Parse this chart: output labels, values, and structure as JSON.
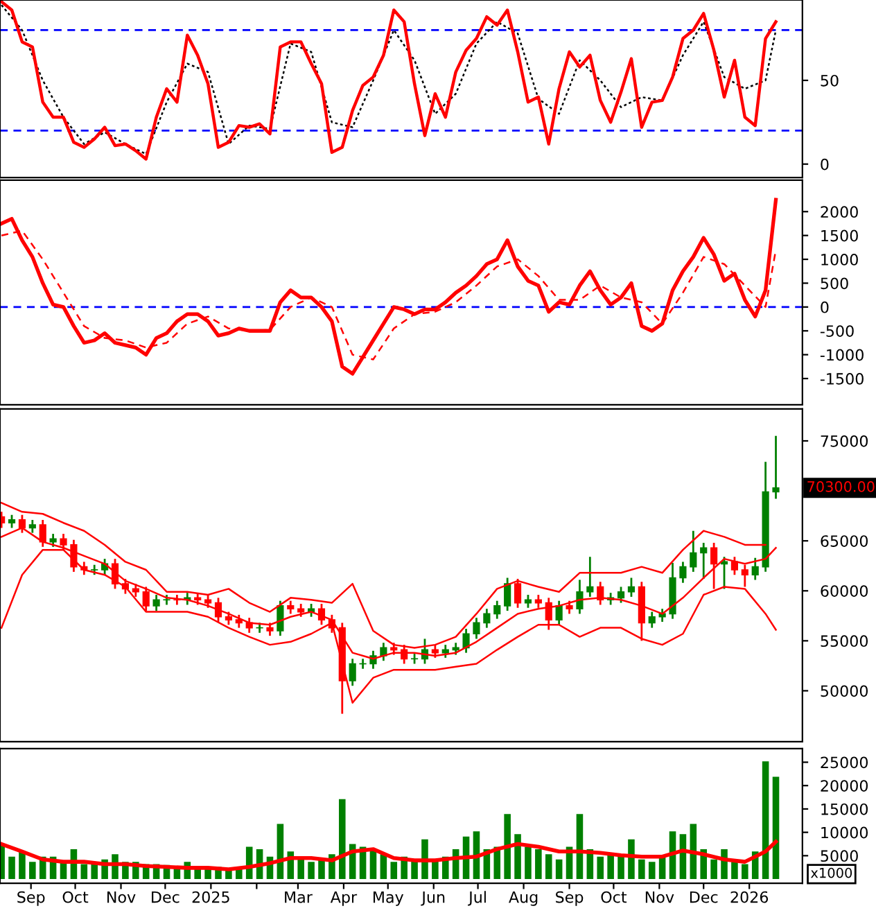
{
  "chart_data": [
    {
      "type": "line",
      "xlim": [
        "2024-08-11",
        "2026-02-06"
      ],
      "ylim": [
        -8,
        98
      ],
      "yticks": [
        0,
        50
      ],
      "tick_labels": "y",
      "ref_lines": [
        {
          "axis": "y",
          "value": 80,
          "color": "#0000ff",
          "line_style": "dashed"
        },
        {
          "axis": "y",
          "value": 20,
          "color": "#0000ff",
          "line_style": "dashed"
        }
      ],
      "x": [
        "2024-08-12",
        "2024-08-19",
        "2024-08-26",
        "2024-09-02",
        "2024-09-09",
        "2024-09-16",
        "2024-09-23",
        "2024-09-30",
        "2024-10-07",
        "2024-10-14",
        "2024-10-21",
        "2024-10-28",
        "2024-11-04",
        "2024-11-11",
        "2024-11-18",
        "2024-11-25",
        "2024-12-02",
        "2024-12-09",
        "2024-12-16",
        "2024-12-23",
        "2024-12-30",
        "2025-01-06",
        "2025-01-13",
        "2025-01-20",
        "2025-01-27",
        "2025-02-03",
        "2025-02-10",
        "2025-02-17",
        "2025-02-24",
        "2025-03-03",
        "2025-03-10",
        "2025-03-17",
        "2025-03-24",
        "2025-03-31",
        "2025-04-07",
        "2025-04-14",
        "2025-04-21",
        "2025-04-28",
        "2025-05-05",
        "2025-05-12",
        "2025-05-19",
        "2025-05-26",
        "2025-06-02",
        "2025-06-09",
        "2025-06-16",
        "2025-06-23",
        "2025-06-30",
        "2025-07-07",
        "2025-07-14",
        "2025-07-21",
        "2025-07-28",
        "2025-08-04",
        "2025-08-11",
        "2025-08-18",
        "2025-08-25",
        "2025-09-01",
        "2025-09-08",
        "2025-09-15",
        "2025-09-22",
        "2025-09-29",
        "2025-10-06",
        "2025-10-13",
        "2025-10-20",
        "2025-10-27",
        "2025-11-03",
        "2025-11-10",
        "2025-11-17",
        "2025-11-24",
        "2025-12-01",
        "2025-12-08",
        "2025-12-15",
        "2025-12-22",
        "2025-12-29",
        "2026-01-05",
        "2026-01-12",
        "2026-01-19"
      ],
      "series": [
        {
          "type": "line",
          "color": "#000000",
          "line_style": "dotted",
          "x": [
            "2024-08-12",
            "2024-08-26",
            "2024-09-09",
            "2024-09-23",
            "2024-10-07",
            "2024-10-21",
            "2024-11-04",
            "2024-11-18",
            "2024-12-02",
            "2024-12-16",
            "2024-12-30",
            "2025-01-13",
            "2025-01-27",
            "2025-02-10",
            "2025-02-24",
            "2025-03-10",
            "2025-03-24",
            "2025-04-07",
            "2025-04-21",
            "2025-05-05",
            "2025-05-19",
            "2025-06-02",
            "2025-06-16",
            "2025-06-30",
            "2025-07-14",
            "2025-07-28",
            "2025-08-11",
            "2025-08-25",
            "2025-09-08",
            "2025-09-22",
            "2025-10-06",
            "2025-10-20",
            "2025-11-03",
            "2025-11-17",
            "2025-12-01",
            "2025-12-15",
            "2025-12-29",
            "2026-01-12",
            "2026-01-19"
          ],
          "values": [
            95,
            80,
            50,
            28,
            12,
            19,
            12,
            6,
            37,
            60,
            55,
            12,
            23,
            21,
            72,
            67,
            25,
            22,
            50,
            80,
            62,
            30,
            42,
            72,
            85,
            78,
            39,
            30,
            62,
            50,
            34,
            40,
            38,
            65,
            85,
            52,
            45,
            50,
            80
          ]
        },
        {
          "type": "line",
          "color": "#ff0000",
          "line_style": "solid",
          "values": [
            97,
            92,
            73,
            70,
            37,
            28,
            28,
            13,
            10,
            15,
            22,
            11,
            12,
            8,
            3,
            28,
            45,
            37,
            77,
            65,
            48,
            10,
            13,
            23,
            22,
            24,
            18,
            70,
            73,
            73,
            60,
            48,
            7,
            10,
            32,
            47,
            52,
            65,
            92,
            85,
            48,
            17,
            42,
            28,
            55,
            68,
            75,
            88,
            83,
            92,
            67,
            37,
            40,
            12,
            45,
            67,
            58,
            65,
            38,
            25,
            43,
            63,
            22,
            37,
            38,
            52,
            75,
            80,
            90,
            68,
            40,
            62,
            28,
            23,
            75,
            85
          ]
        }
      ]
    },
    {
      "type": "line",
      "xlim": [
        "2024-08-11",
        "2026-02-06"
      ],
      "ylim": [
        -2050,
        2660
      ],
      "yticks": [
        -1500,
        -1000,
        -500,
        0,
        500,
        1000,
        1500,
        2000
      ],
      "tick_labels": "y",
      "ref_lines": [
        {
          "axis": "y",
          "value": 0,
          "color": "#0000ff",
          "line_style": "dashed"
        }
      ],
      "x": [
        "2024-08-12",
        "2024-08-19",
        "2024-08-26",
        "2024-09-02",
        "2024-09-09",
        "2024-09-16",
        "2024-09-23",
        "2024-09-30",
        "2024-10-07",
        "2024-10-14",
        "2024-10-21",
        "2024-10-28",
        "2024-11-04",
        "2024-11-11",
        "2024-11-18",
        "2024-11-25",
        "2024-12-02",
        "2024-12-09",
        "2024-12-16",
        "2024-12-23",
        "2024-12-30",
        "2025-01-06",
        "2025-01-13",
        "2025-01-20",
        "2025-01-27",
        "2025-02-03",
        "2025-02-10",
        "2025-02-17",
        "2025-02-24",
        "2025-03-03",
        "2025-03-10",
        "2025-03-17",
        "2025-03-24",
        "2025-03-31",
        "2025-04-07",
        "2025-04-14",
        "2025-04-21",
        "2025-04-28",
        "2025-05-05",
        "2025-05-12",
        "2025-05-19",
        "2025-05-26",
        "2025-06-02",
        "2025-06-09",
        "2025-06-16",
        "2025-06-23",
        "2025-06-30",
        "2025-07-07",
        "2025-07-14",
        "2025-07-21",
        "2025-07-28",
        "2025-08-04",
        "2025-08-11",
        "2025-08-18",
        "2025-08-25",
        "2025-09-01",
        "2025-09-08",
        "2025-09-15",
        "2025-09-22",
        "2025-09-29",
        "2025-10-06",
        "2025-10-13",
        "2025-10-20",
        "2025-10-27",
        "2025-11-03",
        "2025-11-10",
        "2025-11-17",
        "2025-11-24",
        "2025-12-01",
        "2025-12-08",
        "2025-12-15",
        "2025-12-22",
        "2025-12-29",
        "2026-01-05",
        "2026-01-12",
        "2026-01-19"
      ],
      "series": [
        {
          "type": "line",
          "color": "#ff0000",
          "line_style": "dashed",
          "x": [
            "2024-08-12",
            "2024-08-26",
            "2024-09-09",
            "2024-09-23",
            "2024-10-07",
            "2024-10-21",
            "2024-11-04",
            "2024-11-18",
            "2024-12-02",
            "2024-12-16",
            "2024-12-30",
            "2025-01-13",
            "2025-01-27",
            "2025-02-10",
            "2025-02-24",
            "2025-03-10",
            "2025-03-24",
            "2025-04-07",
            "2025-04-21",
            "2025-05-05",
            "2025-05-19",
            "2025-06-02",
            "2025-06-16",
            "2025-06-30",
            "2025-07-14",
            "2025-07-28",
            "2025-08-11",
            "2025-08-25",
            "2025-09-08",
            "2025-09-22",
            "2025-10-06",
            "2025-10-20",
            "2025-11-03",
            "2025-11-17",
            "2025-12-01",
            "2025-12-15",
            "2025-12-29",
            "2026-01-12",
            "2026-01-19"
          ],
          "values": [
            1500,
            1600,
            1000,
            300,
            -400,
            -650,
            -700,
            -850,
            -750,
            -350,
            -200,
            -450,
            -500,
            -480,
            0,
            200,
            0,
            -1000,
            -1100,
            -450,
            -150,
            -100,
            100,
            450,
            850,
            1000,
            650,
            150,
            150,
            450,
            200,
            100,
            -350,
            300,
            1050,
            900,
            450,
            0,
            1200
          ]
        },
        {
          "type": "line",
          "color": "#ff0000",
          "line_style": "solid",
          "values": [
            1750,
            1850,
            1400,
            1050,
            500,
            50,
            0,
            -400,
            -750,
            -700,
            -550,
            -750,
            -800,
            -850,
            -1000,
            -650,
            -550,
            -300,
            -150,
            -150,
            -300,
            -600,
            -550,
            -450,
            -500,
            -500,
            -500,
            100,
            350,
            200,
            200,
            0,
            -300,
            -1250,
            -1400,
            -1050,
            -700,
            -350,
            0,
            -50,
            -150,
            -50,
            -50,
            100,
            300,
            450,
            650,
            900,
            1000,
            1400,
            850,
            550,
            450,
            -100,
            100,
            50,
            450,
            750,
            350,
            50,
            200,
            500,
            -400,
            -500,
            -350,
            350,
            750,
            1050,
            1450,
            1100,
            550,
            700,
            150,
            -200,
            350,
            2250
          ]
        }
      ]
    },
    {
      "type": "candlestick",
      "xlim": [
        "2024-08-11",
        "2026-02-06"
      ],
      "ylim": [
        44900,
        78200
      ],
      "yticks": [
        50000,
        55000,
        60000,
        65000,
        75000
      ],
      "tick_labels": "y",
      "annotations": [
        {
          "text": "70300.00",
          "x": "2026-01-19",
          "y": 70300
        }
      ],
      "x": [
        "2024-08-12",
        "2024-08-19",
        "2024-08-26",
        "2024-09-02",
        "2024-09-09",
        "2024-09-16",
        "2024-09-23",
        "2024-09-30",
        "2024-10-07",
        "2024-10-14",
        "2024-10-21",
        "2024-10-28",
        "2024-11-04",
        "2024-11-11",
        "2024-11-18",
        "2024-11-25",
        "2024-12-02",
        "2024-12-09",
        "2024-12-16",
        "2024-12-23",
        "2024-12-30",
        "2025-01-06",
        "2025-01-13",
        "2025-01-20",
        "2025-01-27",
        "2025-02-03",
        "2025-02-10",
        "2025-02-17",
        "2025-02-24",
        "2025-03-03",
        "2025-03-10",
        "2025-03-17",
        "2025-03-24",
        "2025-03-31",
        "2025-04-07",
        "2025-04-14",
        "2025-04-21",
        "2025-04-28",
        "2025-05-05",
        "2025-05-12",
        "2025-05-19",
        "2025-05-26",
        "2025-06-02",
        "2025-06-09",
        "2025-06-16",
        "2025-06-23",
        "2025-06-30",
        "2025-07-07",
        "2025-07-14",
        "2025-07-21",
        "2025-07-28",
        "2025-08-04",
        "2025-08-11",
        "2025-08-18",
        "2025-08-25",
        "2025-09-01",
        "2025-09-08",
        "2025-09-15",
        "2025-09-22",
        "2025-09-29",
        "2025-10-06",
        "2025-10-13",
        "2025-10-20",
        "2025-10-27",
        "2025-11-03",
        "2025-11-10",
        "2025-11-17",
        "2025-11-24",
        "2025-12-01",
        "2025-12-08",
        "2025-12-15",
        "2025-12-22",
        "2025-12-29",
        "2026-01-05",
        "2026-01-12",
        "2026-01-19"
      ],
      "ohlc": [
        [
          67400,
          67900,
          66300,
          66800
        ],
        [
          66800,
          67600,
          66300,
          67100
        ],
        [
          67100,
          67600,
          65800,
          66300
        ],
        [
          66300,
          67100,
          65800,
          66600
        ],
        [
          66600,
          67100,
          64400,
          64900
        ],
        [
          64900,
          65700,
          64400,
          65200
        ],
        [
          65200,
          65700,
          64100,
          64600
        ],
        [
          64600,
          65100,
          61900,
          62400
        ],
        [
          62400,
          62900,
          61600,
          62100
        ],
        [
          62100,
          62600,
          61600,
          62100
        ],
        [
          62100,
          63200,
          61600,
          62700
        ],
        [
          62700,
          63200,
          60200,
          60700
        ],
        [
          60700,
          61200,
          59700,
          60200
        ],
        [
          60200,
          60700,
          59400,
          59900
        ],
        [
          59900,
          60400,
          58000,
          58500
        ],
        [
          58500,
          59600,
          58000,
          59100
        ],
        [
          59100,
          59600,
          58600,
          59100
        ],
        [
          59100,
          59600,
          58600,
          59100
        ],
        [
          59100,
          59800,
          58600,
          59300
        ],
        [
          59300,
          59800,
          58600,
          59100
        ],
        [
          59100,
          59600,
          58300,
          58800
        ],
        [
          58800,
          59300,
          56900,
          57400
        ],
        [
          57400,
          57900,
          56600,
          57100
        ],
        [
          57100,
          57600,
          56300,
          56800
        ],
        [
          56800,
          57300,
          55800,
          56300
        ],
        [
          56300,
          56800,
          55800,
          56300
        ],
        [
          56300,
          56800,
          55500,
          56000
        ],
        [
          56000,
          59000,
          55500,
          58500
        ],
        [
          58500,
          59000,
          57700,
          58200
        ],
        [
          58200,
          58700,
          57400,
          57900
        ],
        [
          57900,
          58700,
          57400,
          58200
        ],
        [
          58200,
          58700,
          56600,
          57100
        ],
        [
          57100,
          57600,
          55800,
          56300
        ],
        [
          56300,
          56800,
          47700,
          51000
        ],
        [
          51000,
          53200,
          50500,
          52700
        ],
        [
          52700,
          53200,
          52200,
          52700
        ],
        [
          52700,
          54000,
          52200,
          53500
        ],
        [
          53500,
          54800,
          53000,
          54300
        ],
        [
          54300,
          54800,
          53600,
          54100
        ],
        [
          54100,
          54600,
          52700,
          53200
        ],
        [
          53200,
          53700,
          52700,
          53200
        ],
        [
          53200,
          55200,
          52700,
          54100
        ],
        [
          54100,
          54600,
          53300,
          53800
        ],
        [
          53800,
          54600,
          53300,
          54100
        ],
        [
          54100,
          54800,
          53600,
          54300
        ],
        [
          54300,
          56200,
          53800,
          55700
        ],
        [
          55700,
          57300,
          55200,
          56800
        ],
        [
          56800,
          58200,
          56300,
          57700
        ],
        [
          57700,
          59000,
          57200,
          58500
        ],
        [
          58500,
          61300,
          58000,
          60700
        ],
        [
          60700,
          61200,
          58300,
          58800
        ],
        [
          58800,
          59600,
          58300,
          59100
        ],
        [
          59100,
          59600,
          58300,
          58800
        ],
        [
          58800,
          59300,
          56100,
          57100
        ],
        [
          57100,
          59000,
          56600,
          58500
        ],
        [
          58500,
          59000,
          57700,
          58200
        ],
        [
          58200,
          61100,
          57700,
          59900
        ],
        [
          59900,
          63400,
          59400,
          60400
        ],
        [
          60400,
          60900,
          58600,
          59100
        ],
        [
          59100,
          59800,
          58600,
          59300
        ],
        [
          59300,
          60400,
          58800,
          59900
        ],
        [
          59900,
          61300,
          59400,
          60400
        ],
        [
          60400,
          60900,
          55000,
          56800
        ],
        [
          56800,
          57900,
          56300,
          57400
        ],
        [
          57400,
          58200,
          56900,
          57700
        ],
        [
          57700,
          62800,
          57200,
          61300
        ],
        [
          61300,
          62900,
          60800,
          62400
        ],
        [
          62400,
          66000,
          61900,
          63800
        ],
        [
          63800,
          64800,
          61200,
          64300
        ],
        [
          64300,
          64800,
          60200,
          62700
        ],
        [
          62700,
          63400,
          60200,
          62900
        ],
        [
          62900,
          63400,
          61600,
          62100
        ],
        [
          62100,
          62600,
          60400,
          61600
        ],
        [
          61600,
          63300,
          61100,
          62400
        ],
        [
          62400,
          72900,
          61900,
          69900
        ],
        [
          69900,
          75500,
          69200,
          70300
        ]
      ],
      "colors": [
        "#ff0000",
        "#008000",
        "#ff0000",
        "#008000",
        "#ff0000",
        "#008000",
        "#ff0000",
        "#ff0000",
        "#ff0000",
        "#008000",
        "#008000",
        "#ff0000",
        "#ff0000",
        "#ff0000",
        "#ff0000",
        "#008000",
        "#008000",
        "#ff0000",
        "#008000",
        "#ff0000",
        "#ff0000",
        "#ff0000",
        "#ff0000",
        "#ff0000",
        "#ff0000",
        "#008000",
        "#ff0000",
        "#008000",
        "#ff0000",
        "#ff0000",
        "#008000",
        "#ff0000",
        "#ff0000",
        "#ff0000",
        "#008000",
        "#008000",
        "#008000",
        "#008000",
        "#ff0000",
        "#ff0000",
        "#008000",
        "#008000",
        "#ff0000",
        "#008000",
        "#008000",
        "#008000",
        "#008000",
        "#008000",
        "#008000",
        "#008000",
        "#ff0000",
        "#008000",
        "#ff0000",
        "#ff0000",
        "#008000",
        "#ff0000",
        "#008000",
        "#008000",
        "#ff0000",
        "#008000",
        "#008000",
        "#008000",
        "#ff0000",
        "#008000",
        "#008000",
        "#008000",
        "#008000",
        "#008000",
        "#008000",
        "#ff0000",
        "#008000",
        "#ff0000",
        "#ff0000",
        "#008000",
        "#008000",
        "#008000"
      ],
      "series": [
        {
          "type": "line",
          "color": "#ff0000",
          "line_style": "solid",
          "x": [
            "2024-08-12",
            "2024-08-26",
            "2024-09-09",
            "2024-09-23",
            "2024-10-07",
            "2024-10-21",
            "2024-11-04",
            "2024-11-18",
            "2024-12-02",
            "2024-12-16",
            "2024-12-30",
            "2025-01-13",
            "2025-01-27",
            "2025-02-10",
            "2025-02-24",
            "2025-03-10",
            "2025-03-24",
            "2025-04-07",
            "2025-04-21",
            "2025-05-05",
            "2025-05-19",
            "2025-06-02",
            "2025-06-16",
            "2025-06-30",
            "2025-07-14",
            "2025-07-28",
            "2025-08-11",
            "2025-08-25",
            "2025-09-08",
            "2025-09-22",
            "2025-10-06",
            "2025-10-20",
            "2025-11-03",
            "2025-11-17",
            "2025-12-01",
            "2025-12-15",
            "2025-12-29",
            "2026-01-12"
          ],
          "values": [
            68800,
            67900,
            67700,
            66800,
            66000,
            64600,
            62900,
            62100,
            59900,
            59900,
            59600,
            60200,
            58800,
            57900,
            59300,
            59100,
            58800,
            60700,
            56000,
            54600,
            54300,
            54600,
            55400,
            57700,
            60200,
            61000,
            60400,
            59900,
            61800,
            61800,
            61800,
            62400,
            61800,
            64100,
            66000,
            65400,
            64600,
            64600
          ]
        },
        {
          "type": "line",
          "color": "#ff0000",
          "line_style": "solid",
          "x": [
            "2024-08-12",
            "2024-08-26",
            "2024-09-09",
            "2024-09-23",
            "2024-10-07",
            "2024-10-21",
            "2024-11-04",
            "2024-11-18",
            "2024-12-02",
            "2024-12-16",
            "2024-12-30",
            "2025-01-13",
            "2025-01-27",
            "2025-02-10",
            "2025-02-24",
            "2025-03-10",
            "2025-03-24",
            "2025-04-07",
            "2025-04-21",
            "2025-05-05",
            "2025-05-19",
            "2025-06-02",
            "2025-06-16",
            "2025-06-30",
            "2025-07-14",
            "2025-07-28",
            "2025-08-11",
            "2025-08-25",
            "2025-09-08",
            "2025-09-22",
            "2025-10-06",
            "2025-10-20",
            "2025-11-03",
            "2025-11-17",
            "2025-12-01",
            "2025-12-15",
            "2025-12-29",
            "2026-01-12",
            "2026-01-19"
          ],
          "values": [
            65400,
            66300,
            64900,
            64300,
            63500,
            62700,
            61000,
            60200,
            59300,
            59100,
            58500,
            57700,
            56800,
            56600,
            57400,
            57900,
            57100,
            53800,
            53200,
            53800,
            53800,
            53500,
            53800,
            54900,
            56300,
            57700,
            58200,
            58500,
            59100,
            59300,
            59100,
            58500,
            57700,
            59300,
            61300,
            63200,
            62700,
            63200,
            64300
          ]
        },
        {
          "type": "line",
          "color": "#ff0000",
          "line_style": "solid",
          "x": [
            "2024-08-12",
            "2024-08-26",
            "2024-09-09",
            "2024-09-23",
            "2024-10-07",
            "2024-10-21",
            "2024-11-04",
            "2024-11-18",
            "2024-12-02",
            "2024-12-16",
            "2024-12-30",
            "2025-01-13",
            "2025-01-27",
            "2025-02-10",
            "2025-02-24",
            "2025-03-10",
            "2025-03-24",
            "2025-04-07",
            "2025-04-21",
            "2025-05-05",
            "2025-05-19",
            "2025-06-02",
            "2025-06-16",
            "2025-06-30",
            "2025-07-14",
            "2025-07-28",
            "2025-08-11",
            "2025-08-25",
            "2025-09-08",
            "2025-09-22",
            "2025-10-06",
            "2025-10-20",
            "2025-11-03",
            "2025-11-17",
            "2025-12-01",
            "2025-12-15",
            "2025-12-29",
            "2026-01-12",
            "2026-01-19"
          ],
          "values": [
            56300,
            61600,
            64100,
            64100,
            62100,
            61600,
            60400,
            57900,
            57900,
            57900,
            57400,
            56300,
            55400,
            54600,
            54900,
            55700,
            56800,
            48800,
            51300,
            52100,
            52100,
            52100,
            52400,
            52700,
            54100,
            55400,
            56600,
            56600,
            55400,
            56300,
            56300,
            55200,
            54600,
            55700,
            59600,
            60400,
            60200,
            57700,
            56100
          ]
        }
      ]
    },
    {
      "type": "bar",
      "xlim": [
        "2024-08-11",
        "2026-02-06"
      ],
      "ylim": [
        -900,
        27900
      ],
      "yticks": [
        5000,
        10000,
        15000,
        20000,
        25000
      ],
      "xticks": [
        {
          "value": "2024-09-01",
          "label": "Sep"
        },
        {
          "value": "2024-10-01",
          "label": "Oct"
        },
        {
          "value": "2024-11-01",
          "label": "Nov"
        },
        {
          "value": "2024-12-01",
          "label": "Dec"
        },
        {
          "value": "2025-01-01",
          "label": "2025"
        },
        {
          "value": "2025-02-01",
          "label": null
        },
        {
          "value": "2025-03-01",
          "label": "Mar"
        },
        {
          "value": "2025-04-01",
          "label": "Apr"
        },
        {
          "value": "2025-05-01",
          "label": "May"
        },
        {
          "value": "2025-06-01",
          "label": "Jun"
        },
        {
          "value": "2025-07-01",
          "label": "Jul"
        },
        {
          "value": "2025-08-01",
          "label": "Aug"
        },
        {
          "value": "2025-09-01",
          "label": "Sep"
        },
        {
          "value": "2025-10-01",
          "label": "Oct"
        },
        {
          "value": "2025-11-01",
          "label": "Nov"
        },
        {
          "value": "2025-12-01",
          "label": "Dec"
        },
        {
          "value": "2026-01-01",
          "label": "2026"
        }
      ],
      "annotations": [
        "x1000"
      ],
      "color": "#008000",
      "x": [
        "2024-08-12",
        "2024-08-19",
        "2024-08-26",
        "2024-09-02",
        "2024-09-09",
        "2024-09-16",
        "2024-09-23",
        "2024-09-30",
        "2024-10-07",
        "2024-10-14",
        "2024-10-21",
        "2024-10-28",
        "2024-11-04",
        "2024-11-11",
        "2024-11-18",
        "2024-11-25",
        "2024-12-02",
        "2024-12-09",
        "2024-12-16",
        "2024-12-23",
        "2024-12-30",
        "2025-01-06",
        "2025-01-13",
        "2025-01-20",
        "2025-01-27",
        "2025-02-03",
        "2025-02-10",
        "2025-02-17",
        "2025-02-24",
        "2025-03-03",
        "2025-03-10",
        "2025-03-17",
        "2025-03-24",
        "2025-03-31",
        "2025-04-07",
        "2025-04-14",
        "2025-04-21",
        "2025-04-28",
        "2025-05-05",
        "2025-05-12",
        "2025-05-19",
        "2025-05-26",
        "2025-06-02",
        "2025-06-09",
        "2025-06-16",
        "2025-06-23",
        "2025-06-30",
        "2025-07-07",
        "2025-07-14",
        "2025-07-21",
        "2025-07-28",
        "2025-08-04",
        "2025-08-11",
        "2025-08-18",
        "2025-08-25",
        "2025-09-01",
        "2025-09-08",
        "2025-09-15",
        "2025-09-22",
        "2025-09-29",
        "2025-10-06",
        "2025-10-13",
        "2025-10-20",
        "2025-10-27",
        "2025-11-03",
        "2025-11-10",
        "2025-11-17",
        "2025-11-24",
        "2025-12-01",
        "2025-12-08",
        "2025-12-15",
        "2025-12-22",
        "2025-12-29",
        "2026-01-05",
        "2026-01-12",
        "2026-01-19"
      ],
      "values": [
        7500,
        4800,
        5900,
        3700,
        4800,
        4800,
        3700,
        6400,
        3200,
        3700,
        4200,
        5300,
        3700,
        3700,
        3200,
        3200,
        3000,
        2600,
        3700,
        2600,
        2600,
        2600,
        2100,
        2100,
        6900,
        6400,
        4800,
        11800,
        5900,
        4200,
        3700,
        4200,
        5300,
        17100,
        7500,
        6900,
        6400,
        5300,
        3700,
        4800,
        4200,
        8500,
        4200,
        4800,
        6400,
        9100,
        10200,
        6400,
        6900,
        13900,
        9600,
        6900,
        6400,
        5300,
        4200,
        6900,
        13900,
        6400,
        4800,
        5300,
        4800,
        8500,
        4200,
        3700,
        4800,
        10200,
        9600,
        11800,
        6400,
        4200,
        6400,
        3700,
        3200,
        5900,
        25200,
        21900
      ],
      "series": [
        {
          "type": "line",
          "color": "#ff0000",
          "line_style": "solid",
          "x": [
            "2024-08-12",
            "2024-08-26",
            "2024-09-09",
            "2024-09-23",
            "2024-10-07",
            "2024-10-21",
            "2024-11-04",
            "2024-11-18",
            "2024-12-02",
            "2024-12-16",
            "2024-12-30",
            "2025-01-13",
            "2025-01-27",
            "2025-02-10",
            "2025-02-24",
            "2025-03-10",
            "2025-03-24",
            "2025-04-07",
            "2025-04-21",
            "2025-05-05",
            "2025-05-19",
            "2025-06-02",
            "2025-06-16",
            "2025-06-30",
            "2025-07-14",
            "2025-07-28",
            "2025-08-11",
            "2025-08-25",
            "2025-09-08",
            "2025-09-22",
            "2025-10-06",
            "2025-10-20",
            "2025-11-03",
            "2025-11-17",
            "2025-12-01",
            "2025-12-15",
            "2025-12-29",
            "2026-01-12",
            "2026-01-19"
          ],
          "values": [
            7500,
            5900,
            4200,
            3700,
            3700,
            3200,
            3200,
            2800,
            2600,
            2400,
            2400,
            2100,
            2600,
            3400,
            4500,
            4500,
            4000,
            5900,
            6400,
            4500,
            4000,
            4000,
            4500,
            4800,
            6400,
            7500,
            6900,
            5900,
            5900,
            5600,
            5100,
            4800,
            4800,
            6100,
            5300,
            4200,
            3700,
            5900,
            8000
          ]
        }
      ]
    }
  ]
}
